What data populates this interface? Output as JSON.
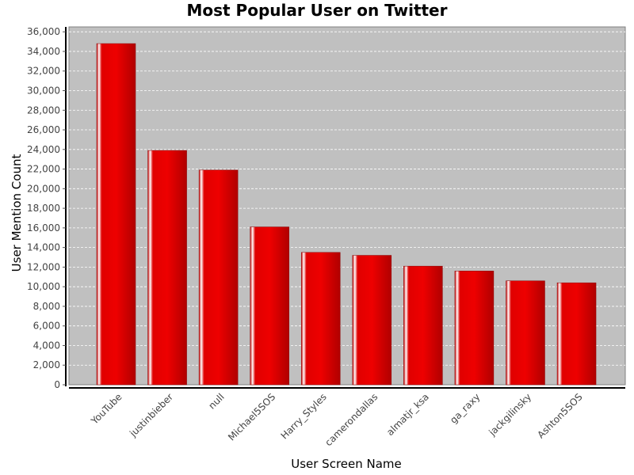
{
  "chart_data": {
    "type": "bar",
    "title": "Most Popular User on Twitter",
    "xlabel": "User Screen Name",
    "ylabel": "User Mention Count",
    "categories": [
      "YouTube",
      "justinbieber",
      "null",
      "Michael5SOS",
      "Harry_Styles",
      "camerondallas",
      "almatjr_ksa",
      "ga_raxy",
      "jackgilinsky",
      "Ashton5SOS"
    ],
    "series": [
      {
        "values": [
          34800,
          23900,
          21900,
          16100,
          13500,
          13200,
          12100,
          11600,
          10600,
          10400
        ]
      }
    ],
    "ylim": [
      0,
      36500
    ],
    "yticks": [
      0,
      2000,
      4000,
      6000,
      8000,
      10000,
      12000,
      14000,
      16000,
      18000,
      20000,
      22000,
      24000,
      26000,
      28000,
      30000,
      32000,
      34000,
      36000
    ],
    "ytick_labels": [
      "0",
      "2,000",
      "4,000",
      "6,000",
      "8,000",
      "10,000",
      "12,000",
      "14,000",
      "16,000",
      "18,000",
      "20,000",
      "22,000",
      "24,000",
      "26,000",
      "28,000",
      "30,000",
      "32,000",
      "34,000",
      "36,000"
    ],
    "grid": true,
    "legend": "none",
    "colors": {
      "bar": "#e80000",
      "bar_dark": "#a00000",
      "plot_background": "#c0c0c0",
      "gridline": "#ffffff"
    }
  }
}
